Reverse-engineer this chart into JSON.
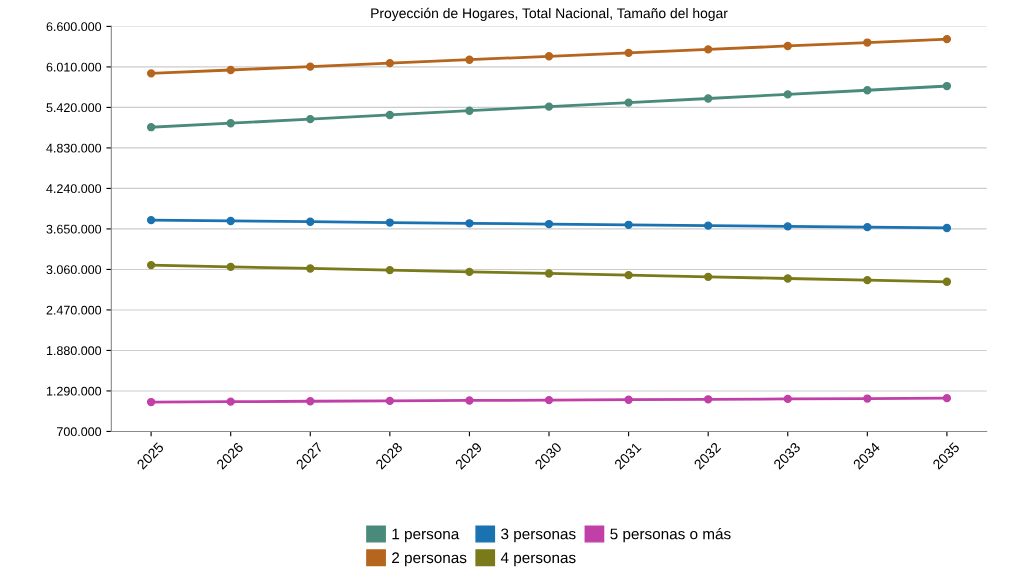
{
  "chart_data": {
    "type": "line",
    "title": "Proyección de Hogares, Total Nacional, Tamaño del hogar",
    "categories": [
      "2025",
      "2026",
      "2027",
      "2028",
      "2029",
      "2030",
      "2031",
      "2032",
      "2033",
      "2034",
      "2035"
    ],
    "series": [
      {
        "name": "1 persona",
        "color": "#4a8a7a",
        "values": [
          5132000,
          5190000,
          5250000,
          5310000,
          5372000,
          5432000,
          5490000,
          5550000,
          5610000,
          5670000,
          5731000
        ]
      },
      {
        "name": "2 personas",
        "color": "#b5651d",
        "values": [
          5916000,
          5965000,
          6015000,
          6065000,
          6115000,
          6165000,
          6215000,
          6265000,
          6315000,
          6365000,
          6415000
        ]
      },
      {
        "name": "3 personas",
        "color": "#1a73b0",
        "values": [
          3778000,
          3766000,
          3755000,
          3743000,
          3732000,
          3721000,
          3710000,
          3698000,
          3687000,
          3676000,
          3664000
        ]
      },
      {
        "name": "4 personas",
        "color": "#7a7a1a",
        "values": [
          3123000,
          3098000,
          3074000,
          3050000,
          3025000,
          3001000,
          2977000,
          2952000,
          2928000,
          2904000,
          2880000
        ]
      },
      {
        "name": "5 personas o más",
        "color": "#c040a8",
        "values": [
          1128000,
          1134000,
          1140000,
          1145000,
          1151000,
          1157000,
          1162000,
          1168000,
          1174000,
          1179000,
          1185000
        ]
      }
    ],
    "ylim": [
      700000,
      6600000
    ],
    "yticks": [
      {
        "value": 700000,
        "label": "700.000"
      },
      {
        "value": 1290000,
        "label": "1.290.000"
      },
      {
        "value": 1880000,
        "label": "1.880.000"
      },
      {
        "value": 2470000,
        "label": "2.470.000"
      },
      {
        "value": 3060000,
        "label": "3.060.000"
      },
      {
        "value": 3650000,
        "label": "3.650.000"
      },
      {
        "value": 4240000,
        "label": "4.240.000"
      },
      {
        "value": 4830000,
        "label": "4.830.000"
      },
      {
        "value": 5420000,
        "label": "5.420.000"
      },
      {
        "value": 6010000,
        "label": "6.010.000"
      },
      {
        "value": 6600000,
        "label": "6.600.000"
      }
    ],
    "grid": "y",
    "legend": "bottom",
    "marker": "circle",
    "line_style": "solid"
  }
}
